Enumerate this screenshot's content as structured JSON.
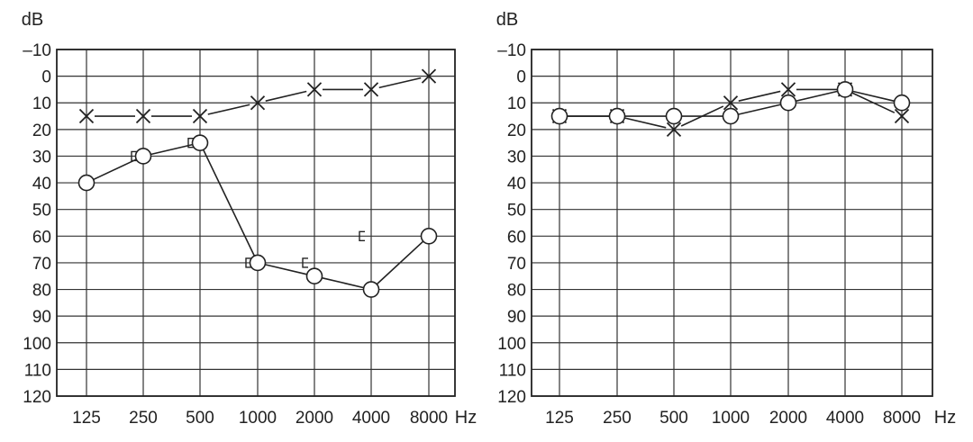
{
  "chart_data": [
    {
      "type": "line",
      "ylabel": "dB",
      "xlabel": "Hz",
      "x_ticks": [
        "125",
        "250",
        "500",
        "1000",
        "2000",
        "4000",
        "8000"
      ],
      "y_ticks": [
        "–10",
        "0",
        "10",
        "20",
        "30",
        "40",
        "50",
        "60",
        "70",
        "80",
        "90",
        "100",
        "110",
        "120"
      ],
      "ylim": [
        -10,
        120
      ],
      "y_inverted": true,
      "grid": true,
      "series": [
        {
          "marker": "cross",
          "x": [
            125,
            250,
            500,
            1000,
            2000,
            4000,
            8000
          ],
          "values": [
            15,
            15,
            15,
            10,
            5,
            5,
            0
          ]
        },
        {
          "marker": "circle",
          "x": [
            125,
            250,
            500,
            1000,
            2000,
            4000,
            8000
          ],
          "values": [
            40,
            30,
            25,
            70,
            75,
            80,
            60
          ]
        },
        {
          "marker": "bracket",
          "x": [
            250,
            500,
            1000,
            2000,
            4000
          ],
          "values": [
            30,
            25,
            70,
            70,
            60
          ]
        }
      ]
    },
    {
      "type": "line",
      "ylabel": "dB",
      "xlabel": "Hz",
      "x_ticks": [
        "125",
        "250",
        "500",
        "1000",
        "2000",
        "4000",
        "8000"
      ],
      "y_ticks": [
        "–10",
        "0",
        "10",
        "20",
        "30",
        "40",
        "50",
        "60",
        "70",
        "80",
        "90",
        "100",
        "110",
        "120"
      ],
      "ylim": [
        -10,
        120
      ],
      "y_inverted": true,
      "grid": true,
      "series": [
        {
          "marker": "cross",
          "x": [
            125,
            250,
            500,
            1000,
            2000,
            4000,
            8000
          ],
          "values": [
            15,
            15,
            20,
            10,
            5,
            5,
            15
          ]
        },
        {
          "marker": "circle",
          "x": [
            125,
            250,
            500,
            1000,
            2000,
            4000,
            8000
          ],
          "values": [
            15,
            15,
            15,
            15,
            10,
            5,
            10
          ]
        }
      ]
    }
  ]
}
